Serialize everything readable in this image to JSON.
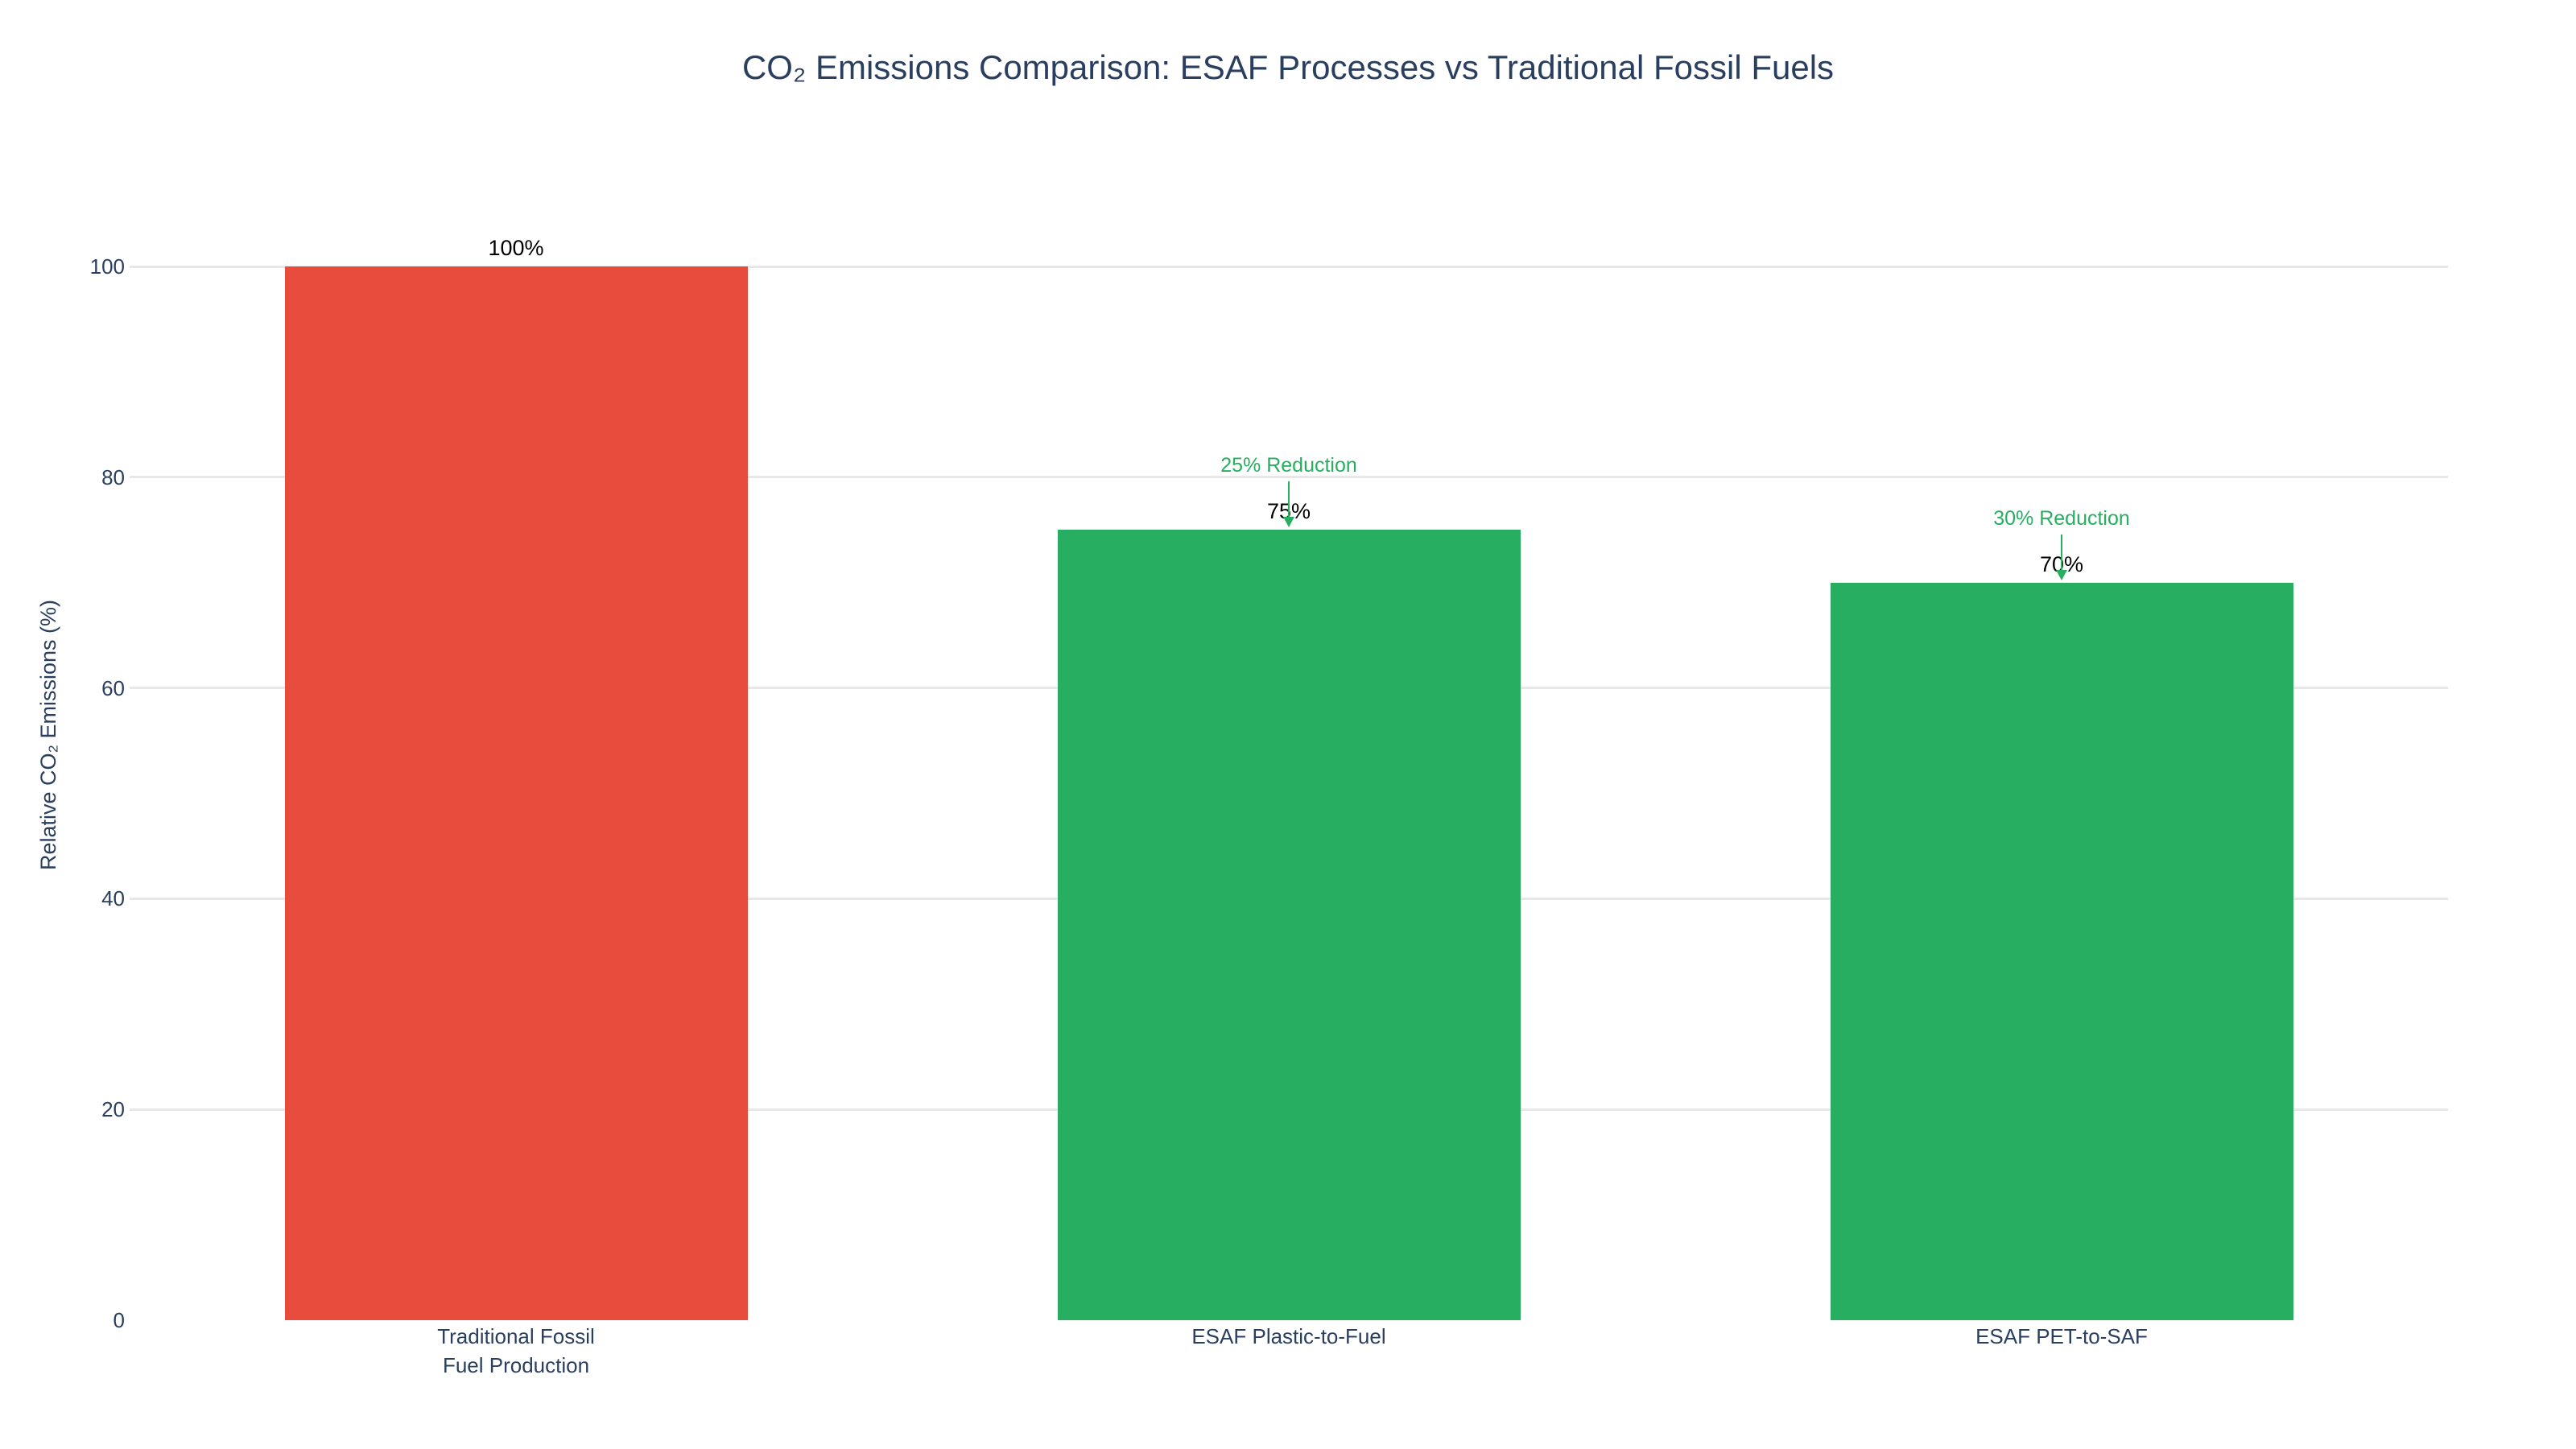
{
  "chart_data": {
    "type": "bar",
    "title": "CO₂ Emissions Comparison: ESAF Processes vs Traditional Fossil Fuels",
    "xlabel": "",
    "ylabel": "Relative CO₂ Emissions (%)",
    "categories": [
      "Traditional Fossil\nFuel Production",
      "ESAF Plastic-to-Fuel",
      "ESAF PET-to-SAF"
    ],
    "values": [
      100,
      75,
      70
    ],
    "bar_labels": [
      "100%",
      "75%",
      "70%"
    ],
    "bar_colors": [
      "#e74c3c",
      "#27ae60",
      "#27ae60"
    ],
    "annotations": [
      {
        "text": "25% Reduction",
        "category_index": 1,
        "points_to_value": 75
      },
      {
        "text": "30% Reduction",
        "category_index": 2,
        "points_to_value": 70
      }
    ],
    "ylim": [
      0,
      100
    ],
    "yticks": [
      0,
      20,
      40,
      60,
      80,
      100
    ],
    "grid": true,
    "legend_position": "none"
  },
  "colors": {
    "title_text": "#2a3f5f",
    "axis_text": "#2a3f5f",
    "value_label_text": "#000000",
    "annotation_green": "#27ae60",
    "bar_red": "#e74c3c",
    "bar_green": "#27ae60",
    "gridline": "#e8e8e8",
    "background": "#ffffff"
  }
}
